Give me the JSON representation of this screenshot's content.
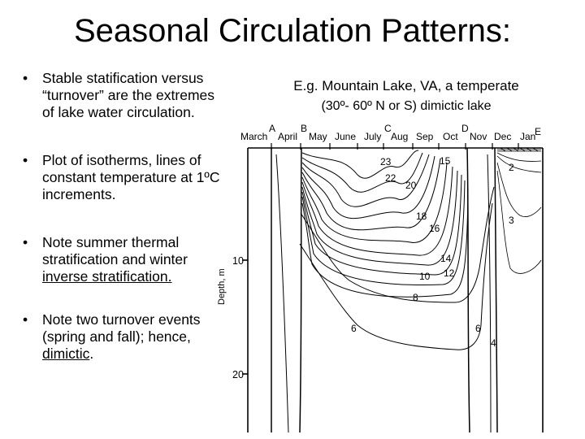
{
  "title": "Seasonal Circulation Patterns:",
  "bullets": [
    {
      "text": "Stable statification versus “turnover” are the extremes of lake water circulation."
    },
    {
      "text": "Plot of isotherms, lines of constant temperature at 1ºC increments."
    },
    {
      "text_before": "Note summer thermal stratification and winter ",
      "text_underlined": "inverse stratification."
    },
    {
      "text_before": "Note two turnover events (spring and fall); hence, ",
      "text_underlined": "dimictic",
      "text_after": "."
    }
  ],
  "example": {
    "line1": "E.g.   Mountain Lake, VA, a temperate",
    "line2": "(30º- 60º N or S) dimictic lake"
  },
  "diagram": {
    "months": [
      "March",
      "April",
      "May",
      "June",
      "July",
      "Aug",
      "Sep",
      "Oct",
      "Nov",
      "Dec",
      "Jan"
    ],
    "markers": [
      "A",
      "B",
      "C",
      "D",
      "E"
    ],
    "depth_ticks": [
      "10",
      "20"
    ],
    "depth_label": "Depth, m",
    "isotherm_labels": [
      "23",
      "22",
      "20",
      "15",
      "18",
      "16",
      "14",
      "12",
      "10",
      "8",
      "6",
      "6",
      "4",
      "2",
      "3"
    ]
  }
}
